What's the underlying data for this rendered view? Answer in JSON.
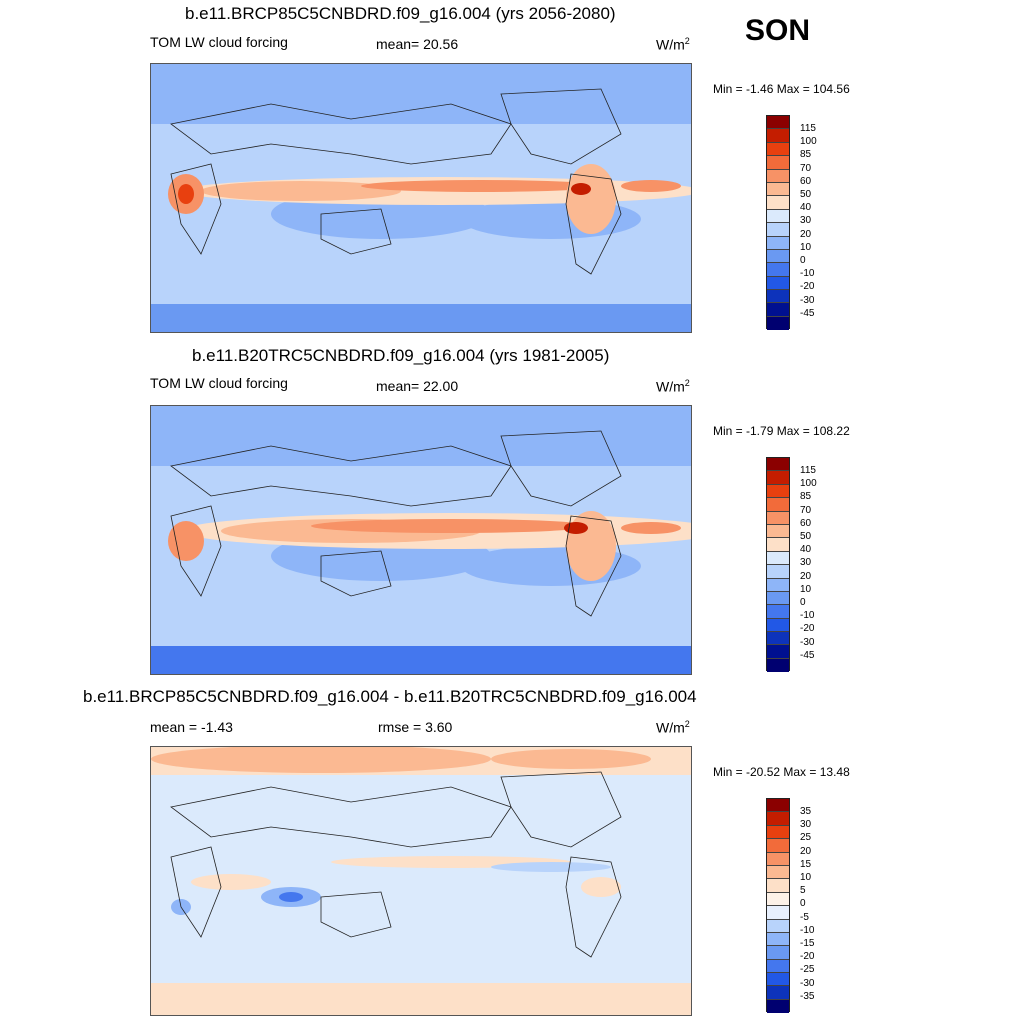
{
  "season": "SON",
  "panels": [
    {
      "title": "b.e11.BRCP85C5CNBDRD.f09_g16.004 (yrs 2056-2080)",
      "left_label": "TOM LW cloud forcing",
      "center_label": "mean=  20.56",
      "units": "W/m",
      "units_exp": "2",
      "minmax": "Min =  -1.46 Max = 104.56",
      "colorbar_labels": [
        "115",
        "100",
        "85",
        "70",
        "60",
        "50",
        "40",
        "30",
        "20",
        "10",
        "0",
        "-10",
        "-20",
        "-30",
        "-45"
      ],
      "colorbar_colors": [
        "#8b0000",
        "#c41d00",
        "#e8400f",
        "#f26b3a",
        "#f79266",
        "#fbb992",
        "#fde0c8",
        "#dbeafc",
        "#b8d3fb",
        "#8eb5f8",
        "#6a99f2",
        "#4477ee",
        "#2258e6",
        "#0d33bb",
        "#001090",
        "#000070"
      ]
    },
    {
      "title": "b.e11.B20TRC5CNBDRD.f09_g16.004 (yrs 1981-2005)",
      "left_label": "TOM LW cloud forcing",
      "center_label": "mean=  22.00",
      "units": "W/m",
      "units_exp": "2",
      "minmax": "Min =  -1.79 Max = 108.22",
      "colorbar_labels": [
        "115",
        "100",
        "85",
        "70",
        "60",
        "50",
        "40",
        "30",
        "20",
        "10",
        "0",
        "-10",
        "-20",
        "-30",
        "-45"
      ],
      "colorbar_colors": [
        "#8b0000",
        "#c41d00",
        "#e8400f",
        "#f26b3a",
        "#f79266",
        "#fbb992",
        "#fde0c8",
        "#dbeafc",
        "#b8d3fb",
        "#8eb5f8",
        "#6a99f2",
        "#4477ee",
        "#2258e6",
        "#0d33bb",
        "#001090",
        "#000070"
      ]
    },
    {
      "title": "b.e11.BRCP85C5CNBDRD.f09_g16.004 - b.e11.B20TRC5CNBDRD.f09_g16.004",
      "left_label": "mean =  -1.43",
      "center_label": "rmse =   3.60",
      "units": "W/m",
      "units_exp": "2",
      "minmax": "Min = -20.52 Max =  13.48",
      "colorbar_labels": [
        "35",
        "30",
        "25",
        "20",
        "15",
        "10",
        "5",
        "0",
        "-5",
        "-10",
        "-15",
        "-20",
        "-25",
        "-30",
        "-35"
      ],
      "colorbar_colors": [
        "#8b0000",
        "#c41d00",
        "#e8400f",
        "#f26b3a",
        "#f79266",
        "#fbb992",
        "#fde0c8",
        "#fdf2e8",
        "#e8f0fd",
        "#b8d3fb",
        "#8eb5f8",
        "#6a99f2",
        "#4477ee",
        "#2258e6",
        "#0d33bb",
        "#000070"
      ]
    }
  ]
}
